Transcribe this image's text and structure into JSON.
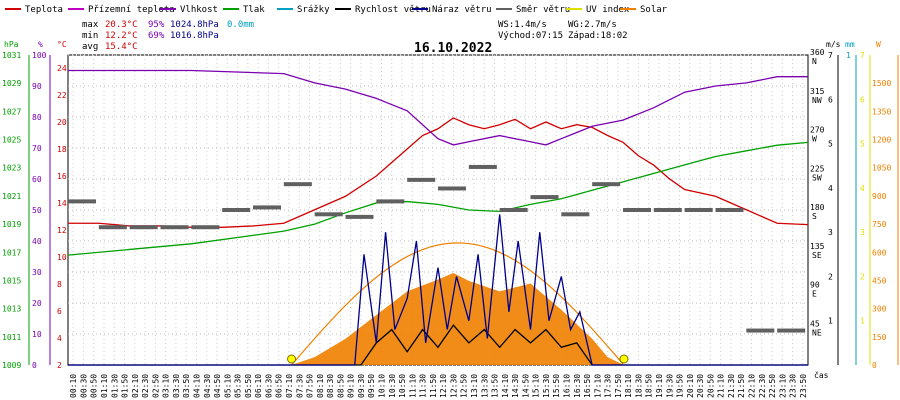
{
  "legend": [
    {
      "label": "Teplota",
      "color": "#d00000"
    },
    {
      "label": "Přízemní teplota",
      "color": "#c000c0"
    },
    {
      "label": "Vlhkost",
      "color": "#7a00b0"
    },
    {
      "label": "Tlak",
      "color": "#00a000"
    },
    {
      "label": "Srážky",
      "color": "#00a0c0"
    },
    {
      "label": "Rychlost větru",
      "color": "#000000"
    },
    {
      "label": "Náraz větru",
      "color": "#00008b"
    },
    {
      "label": "Směr větru",
      "color": "#606060"
    },
    {
      "label": "UV index",
      "color": "#e0e000"
    },
    {
      "label": "Solar",
      "color": "#f08000"
    }
  ],
  "stats": {
    "max_label": "max",
    "max_temp": "20.3°C",
    "max_hum": "95%",
    "max_press": "1024.8hPa",
    "max_rain": "0.0mm",
    "min_label": "min",
    "min_temp": "12.2°C",
    "min_hum": "69%",
    "min_press": "1016.8hPa",
    "avg_label": "avg",
    "avg_temp": "15.4°C"
  },
  "wind_info": {
    "ws": "WS:1.4m/s",
    "wg": "WG:2.7m/s",
    "sunrise": "Východ:07:15",
    "sunset": "Západ:18:02"
  },
  "date": "16.10.2022",
  "axis_units": {
    "hpa": "hPa",
    "percent": "%",
    "celsius": "°C",
    "ms": "m/s",
    "mm": "mm",
    "w": "W",
    "time": "čas"
  },
  "chart_data": {
    "type": "line",
    "title": "16.10.2022",
    "x_ticks": [
      "00:10",
      "00:30",
      "00:50",
      "01:10",
      "01:30",
      "01:50",
      "02:10",
      "02:30",
      "02:50",
      "03:10",
      "03:30",
      "03:50",
      "04:10",
      "04:30",
      "04:50",
      "05:10",
      "05:30",
      "05:50",
      "06:10",
      "06:30",
      "06:50",
      "07:10",
      "07:30",
      "07:50",
      "08:10",
      "08:30",
      "08:50",
      "09:10",
      "09:30",
      "09:50",
      "10:10",
      "10:30",
      "10:50",
      "11:10",
      "11:30",
      "11:50",
      "12:10",
      "12:30",
      "12:50",
      "13:10",
      "13:30",
      "13:50",
      "14:10",
      "14:30",
      "14:50",
      "15:10",
      "15:30",
      "15:50",
      "16:10",
      "16:30",
      "16:50",
      "17:10",
      "17:30",
      "17:50",
      "18:10",
      "18:30",
      "18:50",
      "19:10",
      "19:30",
      "19:50",
      "20:10",
      "20:30",
      "20:50",
      "21:10",
      "21:30",
      "21:50",
      "22:10",
      "22:30",
      "22:50",
      "23:10",
      "23:30",
      "23:50"
    ],
    "axes": {
      "pressure": {
        "unit": "hPa",
        "ticks": [
          1009,
          1011,
          1013,
          1015,
          1017,
          1019,
          1021,
          1023,
          1025,
          1027,
          1029,
          1031
        ]
      },
      "humidity": {
        "unit": "%",
        "ticks": [
          0,
          10,
          20,
          30,
          40,
          50,
          60,
          70,
          80,
          90,
          100
        ]
      },
      "temperature": {
        "unit": "°C",
        "ticks": [
          2,
          4,
          6,
          8,
          10,
          12,
          14,
          16,
          18,
          20,
          22,
          24
        ]
      },
      "direction": {
        "ticks": [
          {
            "deg": "45",
            "dir": "NE"
          },
          {
            "deg": "90",
            "dir": "E"
          },
          {
            "deg": "135",
            "dir": "SE"
          },
          {
            "deg": "180",
            "dir": "S"
          },
          {
            "deg": "225",
            "dir": "SW"
          },
          {
            "deg": "270",
            "dir": "W"
          },
          {
            "deg": "315",
            "dir": "NW"
          },
          {
            "deg": "360",
            "dir": "N"
          }
        ]
      },
      "wind": {
        "unit": "m/s",
        "ticks": [
          1,
          2,
          3,
          4,
          5,
          6,
          7
        ]
      },
      "rain": {
        "unit": "mm",
        "ticks": [
          1
        ]
      },
      "uv": {
        "ticks": [
          1,
          2,
          3,
          4,
          5,
          6,
          7
        ]
      },
      "solar": {
        "unit": "W",
        "ticks": [
          0,
          150,
          300,
          450,
          600,
          750,
          900,
          1050,
          1200,
          1350,
          1500
        ]
      }
    },
    "series": [
      {
        "name": "Teplota",
        "unit": "°C",
        "x_hours": [
          0,
          1,
          2,
          3,
          4,
          5,
          6,
          7,
          7.5,
          8,
          9,
          10,
          11,
          11.5,
          12,
          12.5,
          13,
          13.5,
          14,
          14.5,
          15,
          15.5,
          16,
          16.5,
          17,
          17.5,
          18,
          18.5,
          19,
          19.5,
          20,
          21,
          21.5,
          22,
          23,
          24
        ],
        "values": [
          12.5,
          12.5,
          12.3,
          12.3,
          12.2,
          12.2,
          12.3,
          12.5,
          13.0,
          13.5,
          14.5,
          16.0,
          18.0,
          19.0,
          19.5,
          20.3,
          19.8,
          19.5,
          19.8,
          20.2,
          19.5,
          20.0,
          19.5,
          19.8,
          19.6,
          19.0,
          18.5,
          17.5,
          16.8,
          15.8,
          15.0,
          14.5,
          14.0,
          13.5,
          12.5,
          12.4
        ]
      },
      {
        "name": "Vlhkost",
        "unit": "%",
        "x_hours": [
          0,
          4,
          7,
          8,
          9,
          10,
          11,
          12,
          12.5,
          13,
          14,
          15,
          15.5,
          16,
          16.5,
          17,
          18,
          19,
          20,
          21,
          22,
          23,
          24
        ],
        "values": [
          95,
          95,
          94,
          91,
          89,
          86,
          82,
          73,
          71,
          72,
          74,
          72,
          71,
          73,
          75,
          77,
          79,
          83,
          88,
          90,
          91,
          93,
          93
        ]
      },
      {
        "name": "Tlak",
        "unit": "hPa",
        "x_hours": [
          0,
          2,
          4,
          6,
          7,
          8,
          9,
          10,
          11,
          12,
          13,
          14,
          15,
          16,
          17,
          18,
          19,
          20,
          21,
          22,
          23,
          24
        ],
        "values": [
          1016.8,
          1017.2,
          1017.6,
          1018.2,
          1018.5,
          1019.0,
          1019.8,
          1020.5,
          1020.6,
          1020.4,
          1020.0,
          1019.9,
          1020.4,
          1020.8,
          1021.4,
          1022.0,
          1022.6,
          1023.2,
          1023.8,
          1024.2,
          1024.6,
          1024.8
        ]
      },
      {
        "name": "Rychlost větru",
        "unit": "m/s",
        "x_hours": [
          0,
          9.5,
          10,
          10.5,
          11,
          11.5,
          12,
          12.5,
          13,
          13.5,
          14,
          14.5,
          15,
          15.5,
          16,
          16.5,
          17,
          24
        ],
        "values": [
          0,
          0,
          0.5,
          0.8,
          0.3,
          0.8,
          0.4,
          0.9,
          0.5,
          0.8,
          0.4,
          0.8,
          0.5,
          0.8,
          0.4,
          0.5,
          0,
          0
        ]
      },
      {
        "name": "Náraz větru",
        "unit": "m/s",
        "x_hours": [
          0,
          9.3,
          9.6,
          10,
          10.3,
          10.6,
          11,
          11.3,
          11.6,
          12,
          12.3,
          12.6,
          13,
          13.3,
          13.6,
          14,
          14.3,
          14.6,
          15,
          15.3,
          15.6,
          16,
          16.3,
          16.6,
          17,
          24
        ],
        "values": [
          0,
          0,
          2.5,
          0.5,
          3.0,
          0.8,
          1.5,
          2.8,
          0.5,
          2.2,
          0.8,
          2.0,
          1.0,
          2.5,
          0.6,
          3.4,
          1.2,
          2.8,
          0.8,
          3.0,
          1.0,
          2.0,
          0.8,
          1.2,
          0,
          0
        ]
      },
      {
        "name": "Směr větru",
        "unit": "°",
        "x_hours": [
          0,
          1,
          2,
          3,
          4,
          5,
          6,
          7,
          8,
          9,
          10,
          11,
          12,
          13,
          14,
          15,
          16,
          17,
          18,
          19,
          20,
          21,
          22,
          23
        ],
        "values": [
          190,
          160,
          160,
          160,
          160,
          180,
          183,
          210,
          175,
          172,
          190,
          215,
          205,
          230,
          180,
          195,
          175,
          210,
          180,
          180,
          180,
          180,
          40,
          40
        ]
      },
      {
        "name": "Solar",
        "unit": "W",
        "x_hours": [
          7.25,
          8,
          9,
          10,
          11,
          12,
          12.5,
          13,
          14,
          15,
          16,
          17,
          17.5,
          18.03
        ],
        "values": [
          0,
          60,
          200,
          380,
          560,
          650,
          700,
          640,
          560,
          620,
          420,
          200,
          60,
          0
        ]
      }
    ],
    "uv_markers_hours": [
      7.25,
      18.03
    ]
  }
}
